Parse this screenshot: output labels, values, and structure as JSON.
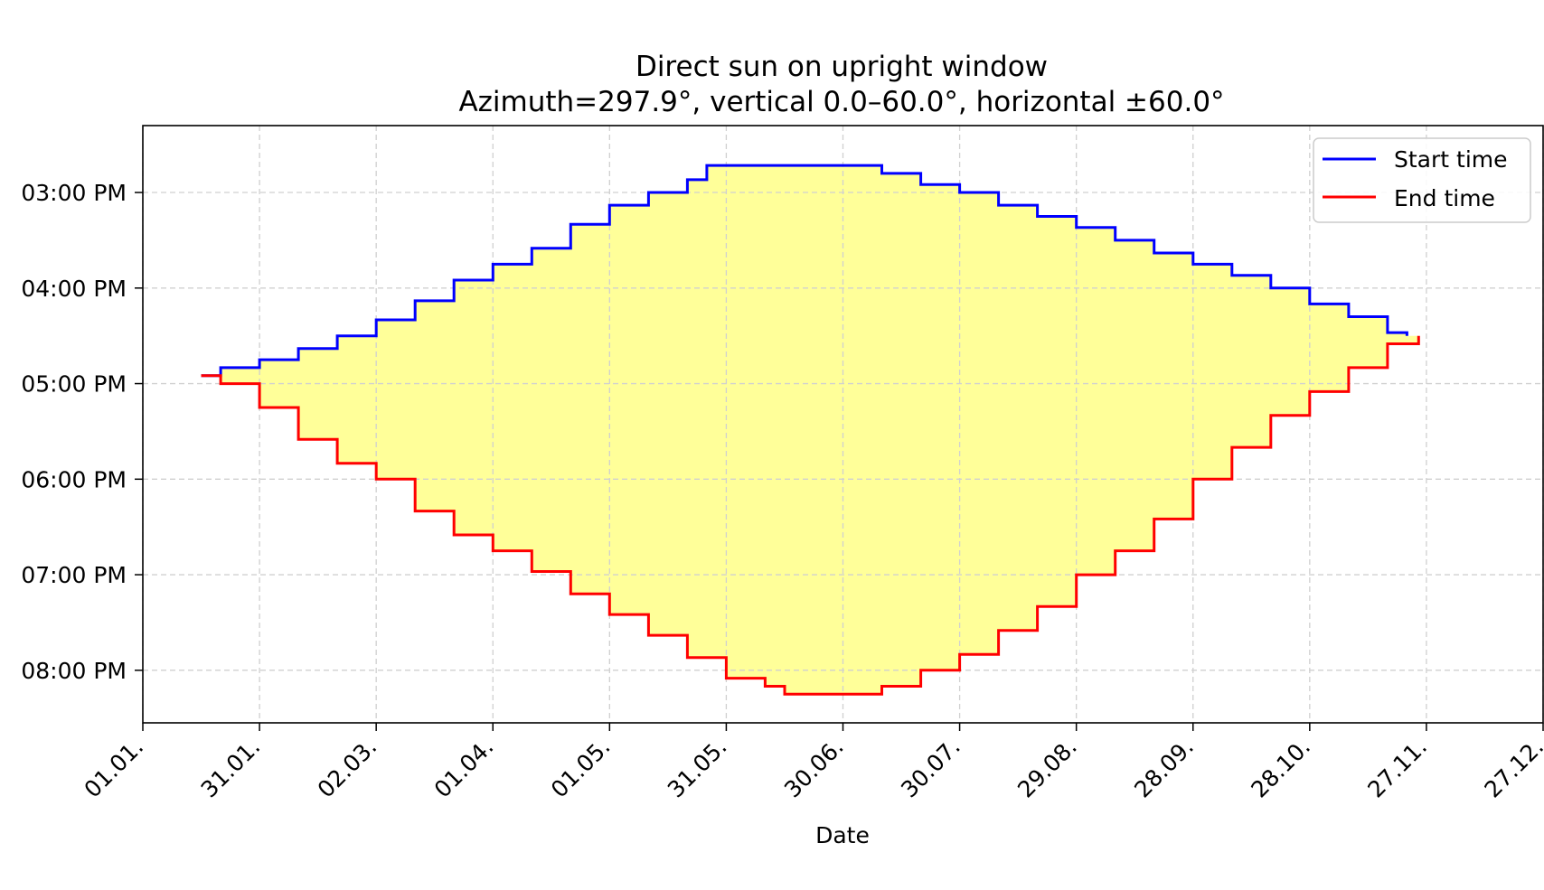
{
  "chart_data": {
    "type": "area",
    "title": "Direct sun on upright window",
    "subtitle": "Azimuth=297.9°, vertical 0.0–60.0°, horizontal ±60.0°",
    "xlabel": "Date",
    "ylabel": "",
    "x_ticks": [
      "01.01.",
      "31.01.",
      "02.03.",
      "01.04.",
      "01.05.",
      "31.05.",
      "30.06.",
      "30.07.",
      "29.08.",
      "28.09.",
      "28.10.",
      "27.11.",
      "27.12."
    ],
    "y_ticks": [
      "03:00 PM",
      "04:00 PM",
      "05:00 PM",
      "06:00 PM",
      "07:00 PM",
      "08:00 PM"
    ],
    "x_range_days": [
      0,
      360
    ],
    "y_range_hours": [
      14.3,
      20.55
    ],
    "y_inverted": true,
    "grid": true,
    "legend_position": "top-right",
    "fill_color": "#ffff99",
    "series": [
      {
        "name": "Start time",
        "color": "#0000ff",
        "points": [
          [
            "16.01.",
            "16:55"
          ],
          [
            "21.01.",
            "16:50"
          ],
          [
            "31.01.",
            "16:45"
          ],
          [
            "10.02.",
            "16:38"
          ],
          [
            "20.02.",
            "16:30"
          ],
          [
            "02.03.",
            "16:20"
          ],
          [
            "12.03.",
            "16:08"
          ],
          [
            "22.03.",
            "15:55"
          ],
          [
            "01.04.",
            "15:45"
          ],
          [
            "11.04.",
            "15:35"
          ],
          [
            "21.04.",
            "15:20"
          ],
          [
            "01.05.",
            "15:08"
          ],
          [
            "11.05.",
            "15:00"
          ],
          [
            "21.05.",
            "14:52"
          ],
          [
            "26.05.",
            "14:43"
          ],
          [
            "30.06.",
            "14:43"
          ],
          [
            "10.07.",
            "14:48"
          ],
          [
            "20.07.",
            "14:55"
          ],
          [
            "30.07.",
            "15:00"
          ],
          [
            "09.08.",
            "15:08"
          ],
          [
            "19.08.",
            "15:15"
          ],
          [
            "29.08.",
            "15:22"
          ],
          [
            "08.09.",
            "15:30"
          ],
          [
            "18.09.",
            "15:38"
          ],
          [
            "28.09.",
            "15:45"
          ],
          [
            "08.10.",
            "15:52"
          ],
          [
            "18.10.",
            "16:00"
          ],
          [
            "28.10.",
            "16:10"
          ],
          [
            "07.11.",
            "16:18"
          ],
          [
            "17.11.",
            "16:28"
          ],
          [
            "22.11.",
            "16:30"
          ]
        ]
      },
      {
        "name": "End time",
        "color": "#ff0000",
        "points": [
          [
            "16.01.",
            "16:55"
          ],
          [
            "21.01.",
            "17:00"
          ],
          [
            "31.01.",
            "17:15"
          ],
          [
            "10.02.",
            "17:35"
          ],
          [
            "20.02.",
            "17:50"
          ],
          [
            "02.03.",
            "18:00"
          ],
          [
            "12.03.",
            "18:20"
          ],
          [
            "22.03.",
            "18:35"
          ],
          [
            "01.04.",
            "18:45"
          ],
          [
            "11.04.",
            "18:58"
          ],
          [
            "21.04.",
            "19:12"
          ],
          [
            "01.05.",
            "19:25"
          ],
          [
            "11.05.",
            "19:38"
          ],
          [
            "21.05.",
            "19:52"
          ],
          [
            "31.05.",
            "20:05"
          ],
          [
            "10.06.",
            "20:10"
          ],
          [
            "15.06.",
            "20:15"
          ],
          [
            "30.06.",
            "20:15"
          ],
          [
            "10.07.",
            "20:10"
          ],
          [
            "20.07.",
            "20:00"
          ],
          [
            "30.07.",
            "19:50"
          ],
          [
            "09.08.",
            "19:35"
          ],
          [
            "19.08.",
            "19:20"
          ],
          [
            "29.08.",
            "19:00"
          ],
          [
            "08.09.",
            "18:45"
          ],
          [
            "18.09.",
            "18:25"
          ],
          [
            "28.09.",
            "18:00"
          ],
          [
            "08.10.",
            "17:40"
          ],
          [
            "18.10.",
            "17:20"
          ],
          [
            "28.10.",
            "17:05"
          ],
          [
            "07.11.",
            "16:50"
          ],
          [
            "17.11.",
            "16:35"
          ],
          [
            "25.11.",
            "16:30"
          ]
        ]
      }
    ]
  }
}
